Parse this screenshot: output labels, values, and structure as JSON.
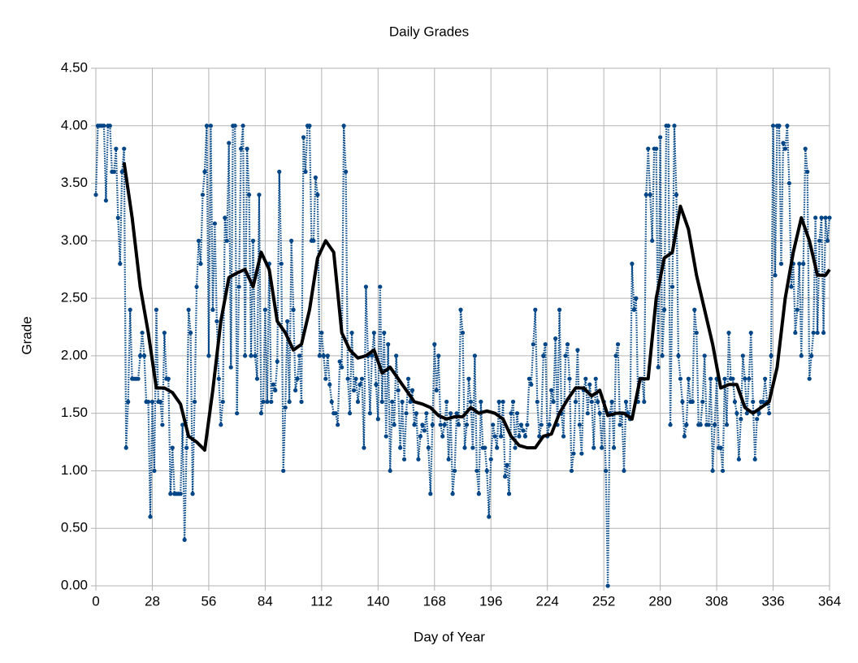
{
  "chart_data": {
    "type": "line",
    "title": "Daily Grades",
    "x_label": "Day of Year",
    "y_label": "Grade",
    "xlim": [
      0,
      364
    ],
    "ylim": [
      0,
      4.5
    ],
    "xticks": [
      0,
      28,
      56,
      84,
      112,
      140,
      168,
      196,
      224,
      252,
      280,
      308,
      336,
      364
    ],
    "yticks": [
      {
        "value": 0,
        "label": "0.00"
      },
      {
        "value": 0.5,
        "label": "0.50"
      },
      {
        "value": 1,
        "label": "1.00"
      },
      {
        "value": 1.5,
        "label": "1.50"
      },
      {
        "value": 2,
        "label": "2.00"
      },
      {
        "value": 2.5,
        "label": "2.50"
      },
      {
        "value": 3,
        "label": "3.00"
      },
      {
        "value": 3.5,
        "label": "3.50"
      },
      {
        "value": 4,
        "label": "4.00"
      },
      {
        "value": 4.5,
        "label": "4.50"
      }
    ],
    "grid": true,
    "series": [
      {
        "color": "#004586",
        "style": "dotted",
        "markers": true,
        "x": [
          0,
          1,
          2,
          3,
          4,
          5,
          6,
          7,
          8,
          9,
          10,
          11,
          12,
          13,
          14,
          15,
          16,
          17,
          18,
          19,
          20,
          21,
          22,
          23,
          24,
          25,
          26,
          27,
          28,
          29,
          30,
          31,
          32,
          33,
          34,
          35,
          36,
          37,
          38,
          39,
          40,
          41,
          42,
          43,
          44,
          45,
          46,
          47,
          48,
          49,
          50,
          51,
          52,
          53,
          54,
          55,
          56,
          57,
          58,
          59,
          60,
          61,
          62,
          63,
          64,
          65,
          66,
          67,
          68,
          69,
          70,
          71,
          72,
          73,
          74,
          75,
          76,
          77,
          78,
          79,
          80,
          81,
          82,
          83,
          84,
          85,
          86,
          87,
          88,
          89,
          90,
          91,
          92,
          93,
          94,
          95,
          96,
          97,
          98,
          99,
          100,
          101,
          102,
          103,
          104,
          105,
          106,
          107,
          108,
          109,
          110,
          111,
          112,
          113,
          114,
          115,
          116,
          117,
          118,
          119,
          120,
          121,
          122,
          123,
          124,
          125,
          126,
          127,
          128,
          129,
          130,
          131,
          132,
          133,
          134,
          135,
          136,
          137,
          138,
          139,
          140,
          141,
          142,
          143,
          144,
          145,
          146,
          147,
          148,
          149,
          150,
          151,
          152,
          153,
          154,
          155,
          156,
          157,
          158,
          159,
          160,
          161,
          162,
          163,
          164,
          165,
          166,
          167,
          168,
          169,
          170,
          171,
          172,
          173,
          174,
          175,
          176,
          177,
          178,
          179,
          180,
          181,
          182,
          183,
          184,
          185,
          186,
          187,
          188,
          189,
          190,
          191,
          192,
          193,
          194,
          195,
          196,
          197,
          198,
          199,
          200,
          201,
          202,
          203,
          204,
          205,
          206,
          207,
          208,
          209,
          210,
          211,
          212,
          213,
          214,
          215,
          216,
          217,
          218,
          219,
          220,
          221,
          222,
          223,
          224,
          225,
          226,
          227,
          228,
          229,
          230,
          231,
          232,
          233,
          234,
          235,
          236,
          237,
          238,
          239,
          240,
          241,
          242,
          243,
          244,
          245,
          246,
          247,
          248,
          249,
          250,
          251,
          252,
          253,
          254,
          255,
          256,
          257,
          258,
          259,
          260,
          261,
          262,
          263,
          264,
          265,
          266,
          267,
          268,
          269,
          270,
          271,
          272,
          273,
          274,
          275,
          276,
          277,
          278,
          279,
          280,
          281,
          282,
          283,
          284,
          285,
          286,
          287,
          288,
          289,
          290,
          291,
          292,
          293,
          294,
          295,
          296,
          297,
          298,
          299,
          300,
          301,
          302,
          303,
          304,
          305,
          306,
          307,
          308,
          309,
          310,
          311,
          312,
          313,
          314,
          315,
          316,
          317,
          318,
          319,
          320,
          321,
          322,
          323,
          324,
          325,
          326,
          327,
          328,
          329,
          330,
          331,
          332,
          333,
          334,
          335,
          336,
          337,
          338,
          339,
          340,
          341,
          342,
          343,
          344,
          345,
          346,
          347,
          348,
          349,
          350,
          351,
          352,
          353,
          354,
          355,
          356,
          357,
          358,
          359,
          360,
          361,
          362,
          363,
          364
        ],
        "values": [
          3.4,
          4,
          4,
          4,
          4,
          3.35,
          4,
          4,
          3.6,
          3.6,
          3.8,
          3.2,
          2.8,
          3.6,
          3.8,
          1.2,
          1.6,
          2.4,
          1.8,
          1.8,
          1.8,
          1.8,
          2.0,
          2.2,
          2.0,
          1.6,
          1.6,
          0.6,
          1.6,
          1.0,
          2.4,
          1.6,
          1.6,
          1.4,
          2.2,
          1.8,
          1.8,
          0.8,
          1.2,
          0.8,
          0.8,
          0.8,
          0.8,
          1.4,
          0.4,
          1.2,
          2.4,
          2.2,
          0.8,
          1.6,
          2.6,
          3.0,
          2.8,
          3.4,
          3.6,
          4.0,
          2.0,
          4.0,
          2.4,
          3.15,
          2.3,
          1.8,
          1.4,
          1.6,
          3.2,
          3.0,
          3.85,
          1.9,
          4.0,
          4.0,
          1.5,
          2.6,
          3.8,
          4.0,
          2.0,
          3.8,
          3.4,
          2.0,
          3.0,
          2.0,
          1.8,
          3.4,
          1.5,
          1.6,
          2.4,
          1.6,
          2.8,
          1.6,
          1.75,
          1.7,
          1.95,
          3.6,
          2.8,
          1.0,
          1.55,
          2.3,
          1.6,
          3.0,
          2.4,
          1.7,
          1.8,
          2.0,
          1.6,
          3.9,
          3.6,
          4.0,
          4.0,
          3.0,
          3.0,
          3.55,
          3.4,
          2.0,
          2.2,
          2.0,
          1.8,
          2.0,
          1.75,
          1.6,
          1.5,
          1.5,
          1.4,
          1.95,
          1.9,
          4.0,
          3.6,
          1.8,
          1.5,
          2.2,
          1.7,
          1.8,
          1.6,
          1.75,
          1.8,
          1.2,
          2.6,
          2.0,
          1.5,
          2.0,
          2.2,
          1.75,
          1.45,
          2.6,
          1.6,
          2.2,
          1.3,
          2.1,
          1.0,
          1.6,
          1.4,
          2.0,
          1.7,
          1.2,
          1.6,
          1.1,
          1.5,
          1.8,
          1.6,
          1.7,
          1.4,
          1.5,
          1.1,
          1.3,
          1.4,
          1.35,
          1.5,
          1.2,
          0.8,
          1.4,
          2.1,
          1.7,
          2.0,
          1.4,
          1.3,
          1.4,
          1.6,
          1.1,
          1.5,
          0.8,
          1.0,
          1.5,
          1.4,
          2.4,
          2.2,
          1.2,
          1.4,
          1.8,
          1.6,
          1.2,
          2.0,
          1.0,
          0.8,
          1.6,
          1.2,
          1.2,
          1.0,
          0.6,
          1.1,
          1.4,
          1.3,
          1.2,
          1.6,
          1.3,
          1.6,
          0.95,
          1.05,
          0.8,
          1.5,
          1.6,
          1.2,
          1.5,
          1.3,
          1.4,
          1.35,
          1.3,
          1.4,
          1.8,
          1.75,
          2.1,
          2.4,
          1.6,
          1.3,
          1.4,
          2.0,
          2.1,
          1.3,
          1.4,
          1.7,
          1.6,
          2.15,
          1.4,
          2.4,
          1.5,
          1.3,
          2.0,
          2.1,
          1.8,
          1.0,
          1.15,
          1.6,
          2.05,
          1.4,
          1.15,
          1.7,
          1.8,
          1.5,
          1.75,
          1.6,
          1.2,
          1.8,
          1.6,
          1.5,
          1.2,
          1.6,
          1.0,
          0.0,
          1.5,
          1.6,
          1.2,
          2.0,
          2.1,
          1.4,
          1.5,
          1.0,
          1.6,
          1.5,
          1.45,
          2.8,
          2.4,
          2.5,
          1.6,
          1.8,
          1.8,
          1.6,
          3.4,
          3.8,
          3.4,
          3.0,
          3.8,
          3.8,
          1.9,
          3.9,
          2.0,
          2.4,
          4.0,
          4.0,
          1.4,
          2.6,
          4.0,
          3.4,
          2.0,
          1.8,
          1.6,
          1.3,
          1.4,
          1.8,
          1.6,
          1.6,
          2.4,
          2.2,
          1.4,
          1.4,
          1.6,
          2.0,
          1.4,
          1.4,
          1.8,
          1.0,
          1.4,
          1.8,
          1.2,
          1.2,
          1.0,
          1.8,
          1.4,
          2.2,
          1.8,
          1.8,
          1.6,
          1.5,
          1.1,
          1.45,
          2.0,
          1.8,
          1.5,
          1.8,
          2.2,
          1.6,
          1.1,
          1.45,
          1.5,
          1.6,
          1.6,
          1.8,
          1.6,
          1.5,
          2.0,
          4.0,
          2.7,
          4.0,
          4.0,
          2.8,
          3.85,
          3.8,
          4.0,
          3.5,
          2.6,
          2.8,
          2.2,
          2.4,
          2.8,
          2.0,
          2.8,
          3.8,
          3.6,
          1.8,
          2.0,
          2.2,
          3.2,
          2.2,
          3.0,
          3.2,
          2.2,
          3.2,
          3.0,
          3.2
        ]
      },
      {
        "color": "#000000",
        "style": "solid",
        "markers": false,
        "x": [
          14,
          18,
          22,
          26,
          30,
          34,
          38,
          42,
          46,
          50,
          54,
          58,
          62,
          66,
          70,
          74,
          78,
          82,
          86,
          90,
          94,
          98,
          102,
          106,
          110,
          114,
          118,
          122,
          126,
          130,
          134,
          138,
          142,
          146,
          150,
          154,
          158,
          162,
          166,
          170,
          174,
          178,
          182,
          186,
          190,
          194,
          198,
          202,
          206,
          210,
          214,
          218,
          222,
          226,
          230,
          234,
          238,
          242,
          246,
          250,
          254,
          258,
          262,
          266,
          270,
          274,
          278,
          282,
          286,
          290,
          294,
          298,
          302,
          306,
          310,
          314,
          318,
          322,
          326,
          330,
          334,
          338,
          342,
          346,
          350,
          354,
          358,
          362,
          364
        ],
        "values": [
          3.68,
          3.2,
          2.6,
          2.2,
          1.72,
          1.72,
          1.68,
          1.58,
          1.3,
          1.25,
          1.18,
          1.7,
          2.3,
          2.68,
          2.72,
          2.75,
          2.6,
          2.9,
          2.75,
          2.3,
          2.2,
          2.05,
          2.1,
          2.4,
          2.85,
          3.0,
          2.9,
          2.2,
          2.05,
          1.98,
          2.0,
          2.05,
          1.85,
          1.9,
          1.8,
          1.7,
          1.6,
          1.58,
          1.55,
          1.48,
          1.45,
          1.47,
          1.47,
          1.55,
          1.5,
          1.52,
          1.5,
          1.45,
          1.3,
          1.22,
          1.2,
          1.2,
          1.3,
          1.32,
          1.5,
          1.62,
          1.72,
          1.72,
          1.65,
          1.7,
          1.48,
          1.5,
          1.5,
          1.45,
          1.8,
          1.8,
          2.5,
          2.85,
          2.9,
          3.3,
          3.1,
          2.7,
          2.4,
          2.1,
          1.72,
          1.75,
          1.75,
          1.55,
          1.5,
          1.55,
          1.6,
          1.9,
          2.5,
          2.9,
          3.2,
          3.0,
          2.7,
          2.7,
          2.75
        ]
      }
    ]
  }
}
